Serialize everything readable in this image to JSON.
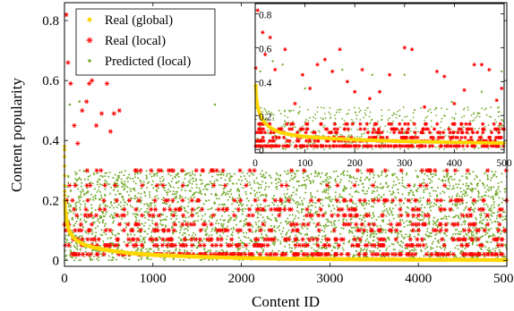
{
  "chart_data": [
    {
      "type": "scatter",
      "panel": "main",
      "xlabel": "Content ID",
      "ylabel": "Content popularity",
      "xlim": [
        0,
        5000
      ],
      "ylim": [
        -0.02,
        0.86
      ],
      "x_ticks": [
        0,
        1000,
        2000,
        3000,
        4000,
        5000
      ],
      "x_tick_labels": [
        "0",
        "1000",
        "2000",
        "3000",
        "4000",
        "5000"
      ],
      "y_ticks": [
        0,
        0.2,
        0.4,
        0.6,
        0.8
      ],
      "y_tick_labels": [
        "0",
        "0.2",
        "0.4",
        "0.6",
        "0.8"
      ],
      "grid": false,
      "legend_position": "top-left",
      "series": [
        {
          "name": "Real (global)",
          "marker": "diamond",
          "color": "#FFD700",
          "shape": "decaying curve",
          "points": [
            [
              1,
              0.38
            ],
            [
              2,
              0.3
            ],
            [
              3,
              0.24
            ],
            [
              5,
              0.2
            ],
            [
              10,
              0.165
            ],
            [
              20,
              0.14
            ],
            [
              30,
              0.125
            ],
            [
              50,
              0.1
            ],
            [
              100,
              0.075
            ],
            [
              200,
              0.055
            ],
            [
              300,
              0.045
            ],
            [
              500,
              0.033
            ],
            [
              700,
              0.025
            ],
            [
              1000,
              0.018
            ],
            [
              1500,
              0.012
            ],
            [
              2000,
              0.008
            ],
            [
              2500,
              0.005
            ],
            [
              3000,
              0.004
            ],
            [
              4000,
              0.002
            ],
            [
              5000,
              0.001
            ]
          ]
        },
        {
          "name": "Real (local)",
          "marker": "star",
          "color": "#FF0000",
          "levels": [
            0.02,
            0.05,
            0.07,
            0.1,
            0.12,
            0.15,
            0.17,
            0.2,
            0.25,
            0.3
          ],
          "outliers": [
            [
              20,
              0.82
            ],
            [
              40,
              0.66
            ],
            [
              70,
              0.59
            ],
            [
              110,
              0.45
            ],
            [
              150,
              0.39
            ],
            [
              200,
              0.5
            ],
            [
              250,
              0.53
            ],
            [
              280,
              0.59
            ],
            [
              310,
              0.6
            ],
            [
              360,
              0.45
            ],
            [
              420,
              0.49
            ],
            [
              480,
              0.59
            ],
            [
              520,
              0.43
            ],
            [
              560,
              0.49
            ],
            [
              620,
              0.5
            ],
            [
              800,
              0.3
            ],
            [
              1200,
              0.3
            ]
          ]
        },
        {
          "name": "Predicted (local)",
          "marker": "dot",
          "color": "#77AC30",
          "range": [
            0,
            0.3
          ],
          "outliers": [
            [
              60,
              0.52
            ],
            [
              170,
              0.53
            ],
            [
              1700,
              0.52
            ]
          ]
        }
      ]
    },
    {
      "type": "scatter",
      "panel": "inset",
      "xlim": [
        0,
        500
      ],
      "ylim": [
        -0.02,
        0.86
      ],
      "x_ticks": [
        0,
        100,
        200,
        300,
        400,
        500
      ],
      "x_tick_labels": [
        "0",
        "100",
        "200",
        "300",
        "400",
        "500"
      ],
      "y_ticks": [
        0,
        0.2,
        0.4,
        0.6,
        0.8
      ],
      "y_tick_labels": [
        "0",
        "0.2",
        "0.4",
        "0.6",
        "0.8"
      ],
      "series": [
        {
          "name": "Real (global)",
          "marker": "diamond",
          "color": "#FFD700",
          "points": [
            [
              1,
              0.38
            ],
            [
              2,
              0.33
            ],
            [
              3,
              0.29
            ],
            [
              5,
              0.25
            ],
            [
              8,
              0.22
            ],
            [
              12,
              0.19
            ],
            [
              18,
              0.16
            ],
            [
              25,
              0.14
            ],
            [
              35,
              0.12
            ],
            [
              50,
              0.1
            ],
            [
              75,
              0.085
            ],
            [
              100,
              0.075
            ],
            [
              150,
              0.065
            ],
            [
              200,
              0.057
            ],
            [
              300,
              0.048
            ],
            [
              400,
              0.042
            ],
            [
              500,
              0.037
            ]
          ]
        },
        {
          "name": "Real (local)",
          "marker": "star",
          "color": "#FF0000",
          "levels": [
            0.02,
            0.05,
            0.07,
            0.1,
            0.12,
            0.15
          ],
          "outliers": [
            [
              1,
              0.48
            ],
            [
              5,
              0.82
            ],
            [
              15,
              0.69
            ],
            [
              20,
              0.56
            ],
            [
              30,
              0.66
            ],
            [
              40,
              0.47
            ],
            [
              60,
              0.59
            ],
            [
              80,
              0.27
            ],
            [
              95,
              0.44
            ],
            [
              110,
              0.36
            ],
            [
              125,
              0.5
            ],
            [
              140,
              0.53
            ],
            [
              155,
              0.46
            ],
            [
              170,
              0.59
            ],
            [
              185,
              0.4
            ],
            [
              200,
              0.34
            ],
            [
              215,
              0.47
            ],
            [
              230,
              0.3
            ],
            [
              250,
              0.34
            ],
            [
              270,
              0.44
            ],
            [
              300,
              0.6
            ],
            [
              315,
              0.59
            ],
            [
              340,
              0.25
            ],
            [
              365,
              0.46
            ],
            [
              380,
              0.43
            ],
            [
              400,
              0.27
            ],
            [
              420,
              0.35
            ],
            [
              440,
              0.5
            ],
            [
              455,
              0.5
            ],
            [
              470,
              0.47
            ],
            [
              485,
              0.29
            ],
            [
              495,
              0.36
            ]
          ]
        },
        {
          "name": "Predicted (local)",
          "marker": "dot",
          "color": "#77AC30",
          "range": [
            0,
            0.25
          ],
          "outliers": [
            [
              10,
              0.46
            ],
            [
              35,
              0.52
            ],
            [
              55,
              0.5
            ],
            [
              100,
              0.36
            ],
            [
              175,
              0.47
            ],
            [
              235,
              0.44
            ],
            [
              300,
              0.44
            ],
            [
              395,
              0.28
            ],
            [
              455,
              0.34
            ],
            [
              495,
              0.46
            ]
          ]
        }
      ]
    }
  ]
}
